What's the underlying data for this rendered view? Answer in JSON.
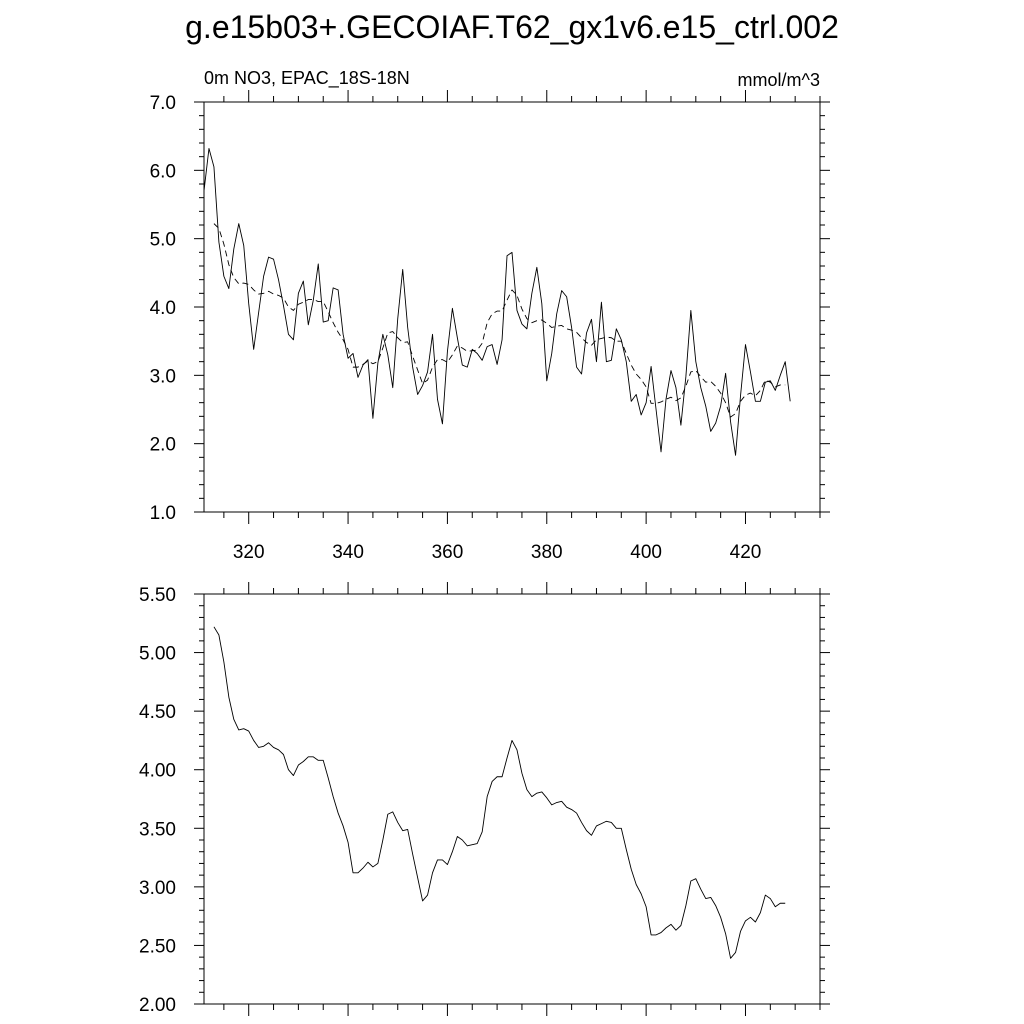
{
  "page": {
    "title": "g.e15b03+.GECOIAF.T62_gx1v6.e15_ctrl.002"
  },
  "chart_data": [
    {
      "type": "line",
      "left_label": "0m NO3, EPAC_18S-18N",
      "right_label": "mmol/m^3",
      "xlim": [
        311,
        435
      ],
      "ylim": [
        1.0,
        7.0
      ],
      "x_ticks": [
        320,
        340,
        360,
        380,
        400,
        420
      ],
      "x_tick_labels": [
        "320",
        "340",
        "360",
        "380",
        "400",
        "420"
      ],
      "y_ticks": [
        1.0,
        2.0,
        3.0,
        4.0,
        5.0,
        6.0,
        7.0
      ],
      "y_tick_labels": [
        "1.0",
        "2.0",
        "3.0",
        "4.0",
        "5.0",
        "6.0",
        "7.0"
      ],
      "grid": false,
      "series": [
        {
          "style": "solid",
          "x_start": 311,
          "x_step": 1,
          "values": [
            5.7,
            6.32,
            6.05,
            4.95,
            4.45,
            4.27,
            4.85,
            5.22,
            4.9,
            4.05,
            3.38,
            3.92,
            4.45,
            4.73,
            4.7,
            4.4,
            4.02,
            3.6,
            3.52,
            4.2,
            4.38,
            3.74,
            4.1,
            4.63,
            3.78,
            3.8,
            4.28,
            4.25,
            3.6,
            3.25,
            3.32,
            2.97,
            3.15,
            3.23,
            2.37,
            3.18,
            3.6,
            3.3,
            2.82,
            3.83,
            4.55,
            3.7,
            3.12,
            2.72,
            2.85,
            3.05,
            3.6,
            2.65,
            2.29,
            3.35,
            3.98,
            3.55,
            3.15,
            3.12,
            3.38,
            3.32,
            3.22,
            3.42,
            3.45,
            3.16,
            3.52,
            4.75,
            4.8,
            3.95,
            3.75,
            3.68,
            4.2,
            4.58,
            4.05,
            2.92,
            3.32,
            3.9,
            4.24,
            4.15,
            3.7,
            3.12,
            3.02,
            3.62,
            3.82,
            3.2,
            4.07,
            3.2,
            3.22,
            3.68,
            3.52,
            3.2,
            2.62,
            2.72,
            2.42,
            2.6,
            3.13,
            2.5,
            1.88,
            2.65,
            3.07,
            2.82,
            2.27,
            2.98,
            3.95,
            3.2,
            2.82,
            2.55,
            2.18,
            2.3,
            2.55,
            3.03,
            2.32,
            1.83,
            2.7,
            3.45,
            3.05,
            2.62,
            2.62,
            2.9,
            2.92,
            2.78,
            3.0,
            3.2,
            2.62
          ]
        },
        {
          "style": "dashed",
          "x_start": 313,
          "x_step": 1,
          "values": [
            5.22,
            5.15,
            4.92,
            4.62,
            4.43,
            4.34,
            4.35,
            4.33,
            4.25,
            4.19,
            4.2,
            4.23,
            4.19,
            4.17,
            4.13,
            4.0,
            3.95,
            4.04,
            4.07,
            4.11,
            4.11,
            4.08,
            4.08,
            3.93,
            3.77,
            3.63,
            3.52,
            3.38,
            3.12,
            3.12,
            3.16,
            3.21,
            3.17,
            3.2,
            3.4,
            3.62,
            3.64,
            3.55,
            3.48,
            3.49,
            3.28,
            3.08,
            2.88,
            2.93,
            3.12,
            3.23,
            3.23,
            3.19,
            3.3,
            3.43,
            3.4,
            3.35,
            3.36,
            3.37,
            3.47,
            3.77,
            3.9,
            3.94,
            3.94,
            4.1,
            4.25,
            4.17,
            3.97,
            3.83,
            3.77,
            3.8,
            3.81,
            3.76,
            3.7,
            3.72,
            3.73,
            3.68,
            3.66,
            3.63,
            3.55,
            3.48,
            3.44,
            3.52,
            3.54,
            3.56,
            3.55,
            3.5,
            3.5,
            3.32,
            3.15,
            3.02,
            2.94,
            2.83,
            2.59,
            2.59,
            2.61,
            2.65,
            2.68,
            2.63,
            2.67,
            2.84,
            3.05,
            3.07,
            2.98,
            2.9,
            2.91,
            2.84,
            2.74,
            2.6,
            2.39,
            2.44,
            2.62,
            2.71,
            2.74,
            2.7,
            2.78,
            2.93,
            2.9,
            2.83,
            2.86,
            2.86
          ]
        }
      ]
    },
    {
      "type": "line",
      "xlim": [
        311,
        435
      ],
      "ylim": [
        2.0,
        5.5
      ],
      "x_ticks": [
        320,
        340,
        360,
        380,
        400,
        420
      ],
      "y_ticks": [
        2.0,
        2.5,
        3.0,
        3.5,
        4.0,
        4.5,
        5.0,
        5.5
      ],
      "y_tick_labels": [
        "2.00",
        "2.50",
        "3.00",
        "3.50",
        "4.00",
        "4.50",
        "5.00",
        "5.50"
      ],
      "grid": false,
      "series": [
        {
          "style": "solid",
          "x_start": 313,
          "x_step": 1,
          "values": [
            5.22,
            5.15,
            4.92,
            4.62,
            4.43,
            4.34,
            4.35,
            4.33,
            4.25,
            4.19,
            4.2,
            4.23,
            4.19,
            4.17,
            4.13,
            4.0,
            3.95,
            4.04,
            4.07,
            4.11,
            4.11,
            4.08,
            4.08,
            3.93,
            3.77,
            3.63,
            3.52,
            3.38,
            3.12,
            3.12,
            3.16,
            3.21,
            3.17,
            3.2,
            3.4,
            3.62,
            3.64,
            3.55,
            3.48,
            3.49,
            3.28,
            3.08,
            2.88,
            2.93,
            3.12,
            3.23,
            3.23,
            3.19,
            3.3,
            3.43,
            3.4,
            3.35,
            3.36,
            3.37,
            3.47,
            3.77,
            3.9,
            3.94,
            3.94,
            4.1,
            4.25,
            4.17,
            3.97,
            3.83,
            3.77,
            3.8,
            3.81,
            3.76,
            3.7,
            3.72,
            3.73,
            3.68,
            3.66,
            3.63,
            3.55,
            3.48,
            3.44,
            3.52,
            3.54,
            3.56,
            3.55,
            3.5,
            3.5,
            3.32,
            3.15,
            3.02,
            2.94,
            2.83,
            2.59,
            2.59,
            2.61,
            2.65,
            2.68,
            2.63,
            2.67,
            2.84,
            3.05,
            3.07,
            2.98,
            2.9,
            2.91,
            2.84,
            2.74,
            2.6,
            2.39,
            2.44,
            2.62,
            2.71,
            2.74,
            2.7,
            2.78,
            2.93,
            2.9,
            2.83,
            2.86,
            2.86
          ]
        }
      ]
    }
  ]
}
